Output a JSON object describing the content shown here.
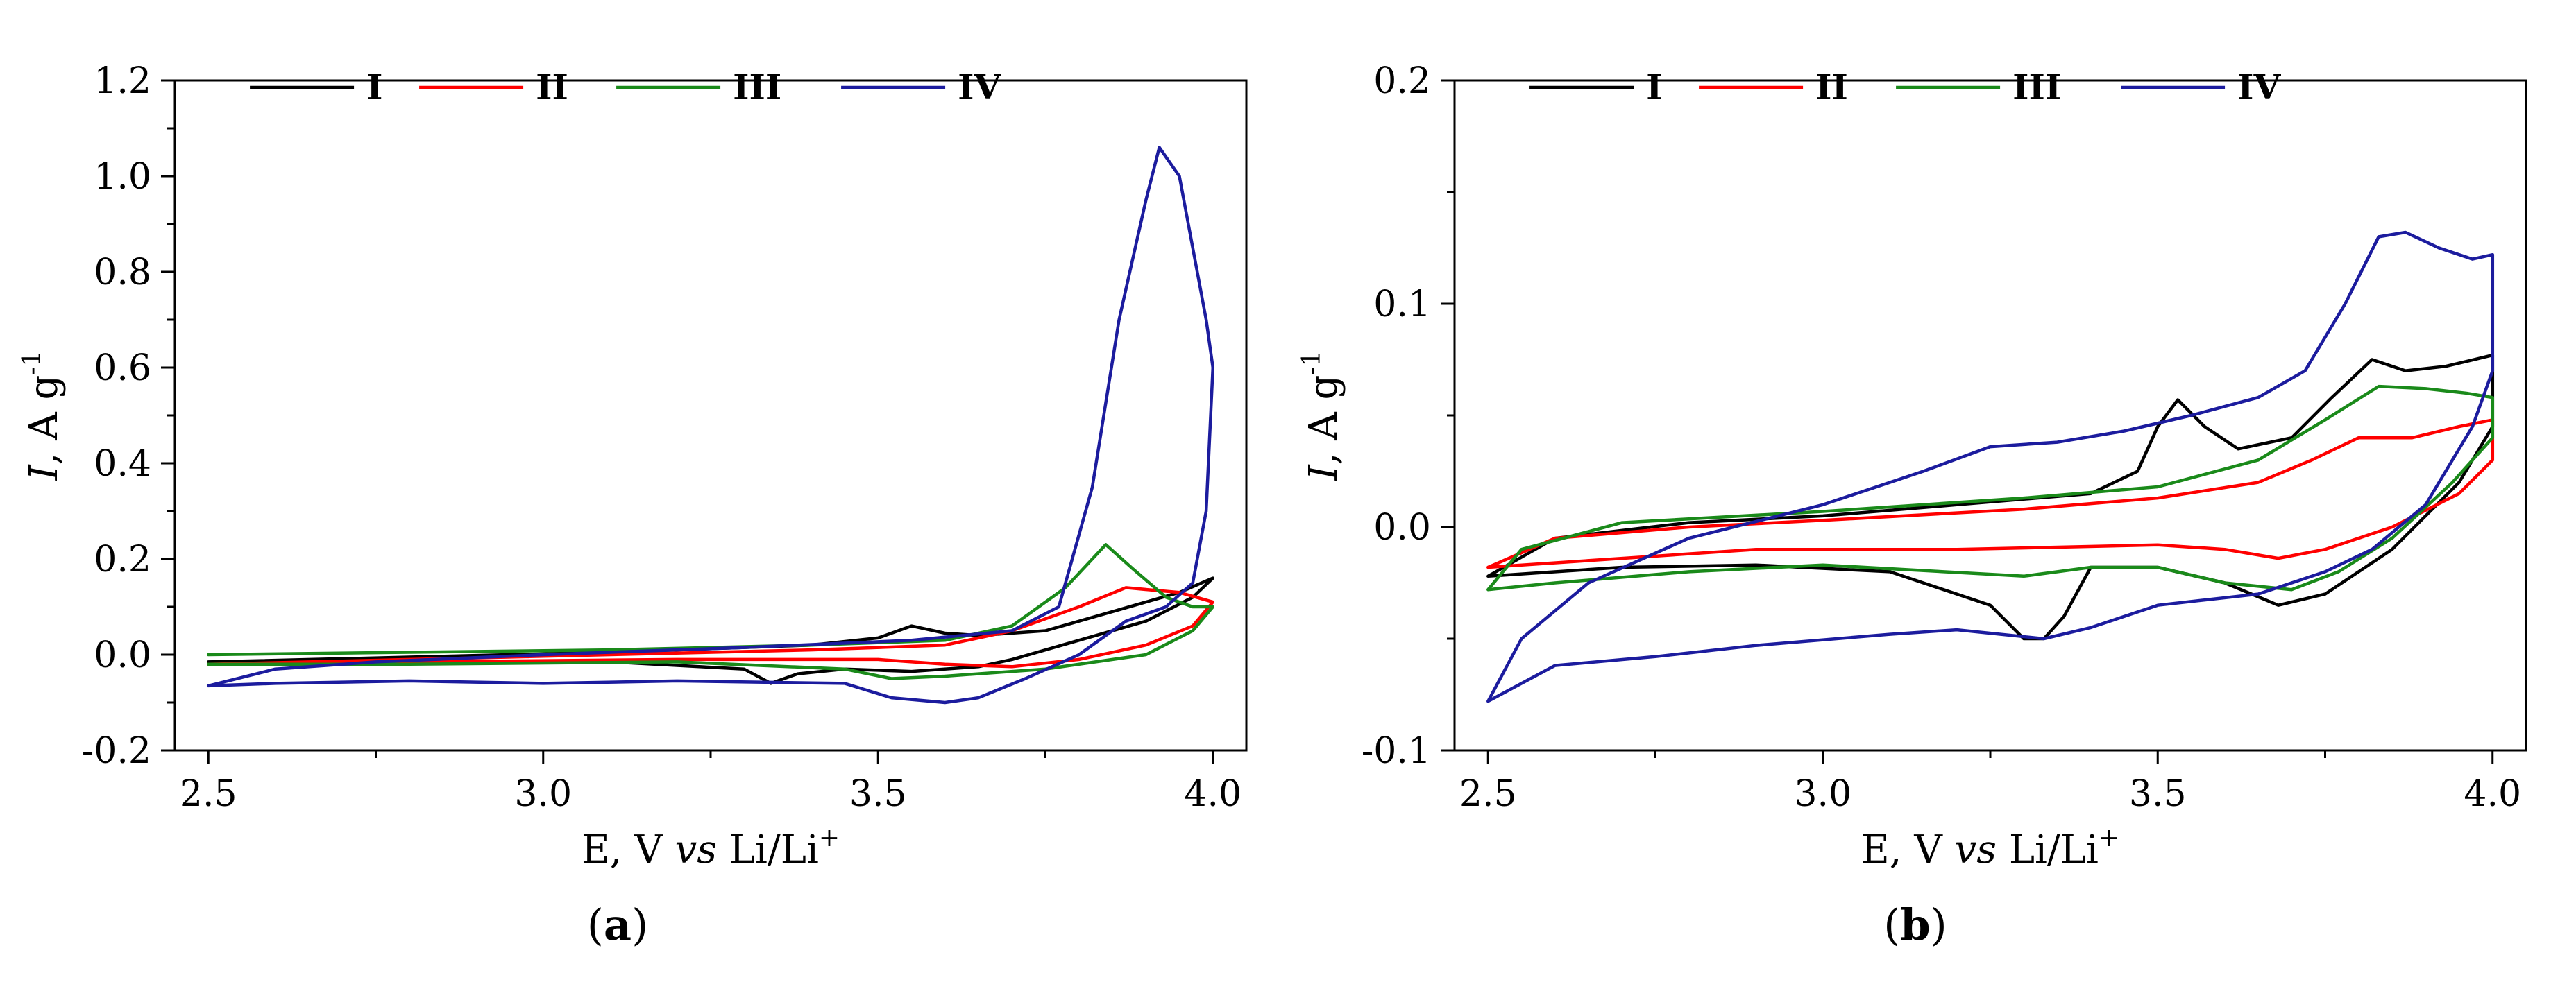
{
  "chart_data": [
    {
      "type": "line",
      "panel_label": "a",
      "xlabel": {
        "pre": "E, V ",
        "italic": "vs",
        "post": " Li/Li",
        "sup": "+"
      },
      "ylabel": {
        "italic": "I",
        "pre": ", A g",
        "sup": "-1"
      },
      "xlim": [
        2.45,
        4.05
      ],
      "ylim": [
        -0.2,
        1.2
      ],
      "xticks": [
        {
          "v": 2.5,
          "label": "2.5"
        },
        {
          "v": 3.0,
          "label": "3.0"
        },
        {
          "v": 3.5,
          "label": "3.5"
        },
        {
          "v": 4.0,
          "label": "4.0"
        }
      ],
      "yticks": [
        {
          "v": -0.2,
          "label": "-0.2"
        },
        {
          "v": 0.0,
          "label": "0.0"
        },
        {
          "v": 0.2,
          "label": "0.2"
        },
        {
          "v": 0.4,
          "label": "0.4"
        },
        {
          "v": 0.6,
          "label": "0.6"
        },
        {
          "v": 0.8,
          "label": "0.8"
        },
        {
          "v": 1.0,
          "label": "1.0"
        },
        {
          "v": 1.2,
          "label": "1.2"
        }
      ],
      "legend_position": "top",
      "series": [
        {
          "name": "I",
          "color": "#000000",
          "points": [
            [
              2.5,
              -0.015
            ],
            [
              2.8,
              -0.005
            ],
            [
              3.1,
              0.005
            ],
            [
              3.4,
              0.02
            ],
            [
              3.5,
              0.035
            ],
            [
              3.55,
              0.06
            ],
            [
              3.6,
              0.045
            ],
            [
              3.65,
              0.04
            ],
            [
              3.75,
              0.05
            ],
            [
              3.85,
              0.09
            ],
            [
              3.95,
              0.13
            ],
            [
              4.0,
              0.16
            ],
            [
              3.97,
              0.12
            ],
            [
              3.9,
              0.07
            ],
            [
              3.8,
              0.03
            ],
            [
              3.7,
              -0.01
            ],
            [
              3.65,
              -0.025
            ],
            [
              3.55,
              -0.035
            ],
            [
              3.45,
              -0.03
            ],
            [
              3.38,
              -0.04
            ],
            [
              3.34,
              -0.06
            ],
            [
              3.3,
              -0.03
            ],
            [
              3.1,
              -0.015
            ],
            [
              2.8,
              -0.015
            ],
            [
              2.5,
              -0.015
            ]
          ]
        },
        {
          "name": "II",
          "color": "#ff0000",
          "points": [
            [
              2.5,
              -0.02
            ],
            [
              2.8,
              -0.01
            ],
            [
              3.1,
              0.0
            ],
            [
              3.4,
              0.01
            ],
            [
              3.6,
              0.02
            ],
            [
              3.7,
              0.05
            ],
            [
              3.8,
              0.1
            ],
            [
              3.87,
              0.14
            ],
            [
              3.95,
              0.13
            ],
            [
              4.0,
              0.11
            ],
            [
              3.97,
              0.06
            ],
            [
              3.9,
              0.02
            ],
            [
              3.8,
              -0.01
            ],
            [
              3.7,
              -0.025
            ],
            [
              3.6,
              -0.02
            ],
            [
              3.5,
              -0.01
            ],
            [
              3.2,
              -0.01
            ],
            [
              2.8,
              -0.015
            ],
            [
              2.5,
              -0.02
            ]
          ]
        },
        {
          "name": "III",
          "color": "#1a8a1a",
          "points": [
            [
              2.5,
              0.0
            ],
            [
              2.8,
              0.005
            ],
            [
              3.1,
              0.01
            ],
            [
              3.4,
              0.02
            ],
            [
              3.6,
              0.03
            ],
            [
              3.7,
              0.06
            ],
            [
              3.78,
              0.14
            ],
            [
              3.84,
              0.23
            ],
            [
              3.88,
              0.18
            ],
            [
              3.93,
              0.12
            ],
            [
              3.97,
              0.1
            ],
            [
              4.0,
              0.1
            ],
            [
              3.97,
              0.05
            ],
            [
              3.9,
              0.0
            ],
            [
              3.75,
              -0.03
            ],
            [
              3.6,
              -0.045
            ],
            [
              3.52,
              -0.05
            ],
            [
              3.45,
              -0.03
            ],
            [
              3.2,
              -0.015
            ],
            [
              2.8,
              -0.02
            ],
            [
              2.5,
              -0.02
            ]
          ]
        },
        {
          "name": "IV",
          "color": "#1c1c9e",
          "points": [
            [
              2.5,
              -0.065
            ],
            [
              2.6,
              -0.03
            ],
            [
              2.75,
              -0.015
            ],
            [
              3.0,
              0.0
            ],
            [
              3.3,
              0.015
            ],
            [
              3.55,
              0.03
            ],
            [
              3.7,
              0.05
            ],
            [
              3.77,
              0.1
            ],
            [
              3.82,
              0.35
            ],
            [
              3.86,
              0.7
            ],
            [
              3.9,
              0.95
            ],
            [
              3.92,
              1.06
            ],
            [
              3.95,
              1.0
            ],
            [
              3.97,
              0.85
            ],
            [
              3.99,
              0.7
            ],
            [
              4.0,
              0.6
            ],
            [
              3.99,
              0.3
            ],
            [
              3.97,
              0.15
            ],
            [
              3.93,
              0.1
            ],
            [
              3.87,
              0.07
            ],
            [
              3.8,
              0.0
            ],
            [
              3.72,
              -0.05
            ],
            [
              3.65,
              -0.09
            ],
            [
              3.6,
              -0.1
            ],
            [
              3.52,
              -0.09
            ],
            [
              3.45,
              -0.06
            ],
            [
              3.2,
              -0.055
            ],
            [
              3.0,
              -0.06
            ],
            [
              2.8,
              -0.055
            ],
            [
              2.6,
              -0.06
            ],
            [
              2.5,
              -0.065
            ]
          ]
        }
      ]
    },
    {
      "type": "line",
      "panel_label": "b",
      "xlabel": {
        "pre": "E, V ",
        "italic": "vs",
        "post": " Li/Li",
        "sup": "+"
      },
      "ylabel": {
        "italic": "I",
        "pre": ", A g",
        "sup": "-1"
      },
      "xlim": [
        2.45,
        4.05
      ],
      "ylim": [
        -0.1,
        0.2
      ],
      "xticks": [
        {
          "v": 2.5,
          "label": "2.5"
        },
        {
          "v": 3.0,
          "label": "3.0"
        },
        {
          "v": 3.5,
          "label": "3.5"
        },
        {
          "v": 4.0,
          "label": "4.0"
        }
      ],
      "yticks": [
        {
          "v": -0.1,
          "label": "-0.1"
        },
        {
          "v": 0.0,
          "label": "0.0"
        },
        {
          "v": 0.1,
          "label": "0.1"
        },
        {
          "v": 0.2,
          "label": "0.2"
        }
      ],
      "legend_position": "top",
      "series": [
        {
          "name": "I",
          "color": "#000000",
          "points": [
            [
              2.5,
              -0.022
            ],
            [
              2.6,
              -0.005
            ],
            [
              2.8,
              0.002
            ],
            [
              3.0,
              0.005
            ],
            [
              3.2,
              0.01
            ],
            [
              3.4,
              0.015
            ],
            [
              3.47,
              0.025
            ],
            [
              3.5,
              0.045
            ],
            [
              3.53,
              0.057
            ],
            [
              3.57,
              0.045
            ],
            [
              3.62,
              0.035
            ],
            [
              3.7,
              0.04
            ],
            [
              3.76,
              0.058
            ],
            [
              3.82,
              0.075
            ],
            [
              3.87,
              0.07
            ],
            [
              3.93,
              0.072
            ],
            [
              4.0,
              0.077
            ],
            [
              4.0,
              0.045
            ],
            [
              3.95,
              0.02
            ],
            [
              3.85,
              -0.01
            ],
            [
              3.75,
              -0.03
            ],
            [
              3.68,
              -0.035
            ],
            [
              3.6,
              -0.025
            ],
            [
              3.5,
              -0.018
            ],
            [
              3.4,
              -0.018
            ],
            [
              3.36,
              -0.04
            ],
            [
              3.33,
              -0.05
            ],
            [
              3.3,
              -0.05
            ],
            [
              3.25,
              -0.035
            ],
            [
              3.1,
              -0.02
            ],
            [
              2.9,
              -0.017
            ],
            [
              2.7,
              -0.018
            ],
            [
              2.5,
              -0.022
            ]
          ]
        },
        {
          "name": "II",
          "color": "#ff0000",
          "points": [
            [
              2.5,
              -0.018
            ],
            [
              2.6,
              -0.005
            ],
            [
              2.8,
              0.0
            ],
            [
              3.0,
              0.003
            ],
            [
              3.3,
              0.008
            ],
            [
              3.5,
              0.013
            ],
            [
              3.65,
              0.02
            ],
            [
              3.73,
              0.03
            ],
            [
              3.8,
              0.04
            ],
            [
              3.88,
              0.04
            ],
            [
              3.95,
              0.045
            ],
            [
              4.0,
              0.048
            ],
            [
              4.0,
              0.03
            ],
            [
              3.95,
              0.015
            ],
            [
              3.85,
              0.0
            ],
            [
              3.75,
              -0.01
            ],
            [
              3.68,
              -0.014
            ],
            [
              3.6,
              -0.01
            ],
            [
              3.5,
              -0.008
            ],
            [
              3.2,
              -0.01
            ],
            [
              2.9,
              -0.01
            ],
            [
              2.7,
              -0.014
            ],
            [
              2.5,
              -0.018
            ]
          ]
        },
        {
          "name": "III",
          "color": "#1a8a1a",
          "points": [
            [
              2.5,
              -0.028
            ],
            [
              2.55,
              -0.01
            ],
            [
              2.7,
              0.002
            ],
            [
              3.0,
              0.007
            ],
            [
              3.3,
              0.013
            ],
            [
              3.5,
              0.018
            ],
            [
              3.65,
              0.03
            ],
            [
              3.75,
              0.048
            ],
            [
              3.83,
              0.063
            ],
            [
              3.9,
              0.062
            ],
            [
              3.96,
              0.06
            ],
            [
              4.0,
              0.058
            ],
            [
              4.0,
              0.04
            ],
            [
              3.94,
              0.02
            ],
            [
              3.85,
              -0.005
            ],
            [
              3.77,
              -0.02
            ],
            [
              3.7,
              -0.028
            ],
            [
              3.6,
              -0.025
            ],
            [
              3.5,
              -0.018
            ],
            [
              3.4,
              -0.018
            ],
            [
              3.3,
              -0.022
            ],
            [
              3.0,
              -0.017
            ],
            [
              2.8,
              -0.02
            ],
            [
              2.6,
              -0.025
            ],
            [
              2.5,
              -0.028
            ]
          ]
        },
        {
          "name": "IV",
          "color": "#1c1c9e",
          "points": [
            [
              2.5,
              -0.078
            ],
            [
              2.55,
              -0.05
            ],
            [
              2.65,
              -0.025
            ],
            [
              2.8,
              -0.005
            ],
            [
              3.0,
              0.01
            ],
            [
              3.15,
              0.025
            ],
            [
              3.25,
              0.036
            ],
            [
              3.35,
              0.038
            ],
            [
              3.45,
              0.043
            ],
            [
              3.55,
              0.05
            ],
            [
              3.65,
              0.058
            ],
            [
              3.72,
              0.07
            ],
            [
              3.78,
              0.1
            ],
            [
              3.83,
              0.13
            ],
            [
              3.87,
              0.132
            ],
            [
              3.92,
              0.125
            ],
            [
              3.97,
              0.12
            ],
            [
              4.0,
              0.122
            ],
            [
              4.0,
              0.07
            ],
            [
              3.97,
              0.045
            ],
            [
              3.9,
              0.01
            ],
            [
              3.82,
              -0.01
            ],
            [
              3.75,
              -0.02
            ],
            [
              3.65,
              -0.03
            ],
            [
              3.5,
              -0.035
            ],
            [
              3.4,
              -0.045
            ],
            [
              3.33,
              -0.05
            ],
            [
              3.2,
              -0.046
            ],
            [
              3.1,
              -0.048
            ],
            [
              2.9,
              -0.053
            ],
            [
              2.75,
              -0.058
            ],
            [
              2.6,
              -0.062
            ],
            [
              2.5,
              -0.078
            ]
          ]
        }
      ]
    }
  ]
}
